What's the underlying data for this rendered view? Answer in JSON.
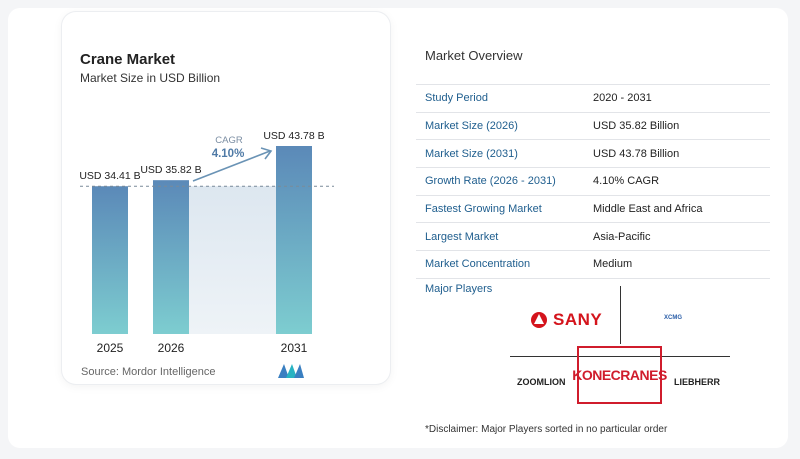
{
  "chart_data": {
    "type": "bar",
    "title": "Crane Market",
    "subtitle": "Market Size in USD Billion",
    "categories": [
      "2025",
      "2026",
      "2031"
    ],
    "values": [
      34.41,
      35.82,
      43.78
    ],
    "value_labels": [
      "USD 34.41 B",
      "USD 35.82 B",
      "USD 43.78 B"
    ],
    "annotation": {
      "label": "CAGR",
      "value": "4.10%"
    },
    "ylim": [
      0,
      45
    ],
    "colors": {
      "bar_top": "#5b89b8",
      "bar_bottom": "#7dcdd0",
      "accent": "#6a93b5"
    }
  },
  "source": "Source:  Mordor Intelligence",
  "overview": {
    "title": "Market Overview",
    "rows": [
      {
        "label": "Study Period",
        "value": "2020 - 2031"
      },
      {
        "label": "Market Size (2026)",
        "value": "USD 35.82 Billion"
      },
      {
        "label": "Market Size (2031)",
        "value": "USD 43.78 Billion"
      },
      {
        "label": "Growth Rate (2026 - 2031)",
        "value": "4.10% CAGR"
      },
      {
        "label": "Fastest Growing Market",
        "value": "Middle East and Africa"
      },
      {
        "label": "Largest Market",
        "value": "Asia-Pacific"
      },
      {
        "label": "Market Concentration",
        "value": "Medium"
      }
    ],
    "players_title": "Major Players",
    "players": [
      "SANY",
      "XCMG",
      "ZOOMLION",
      "KONECRANES",
      "LIEBHERR"
    ],
    "disclaimer": "*Disclaimer: Major Players sorted in no particular order"
  }
}
